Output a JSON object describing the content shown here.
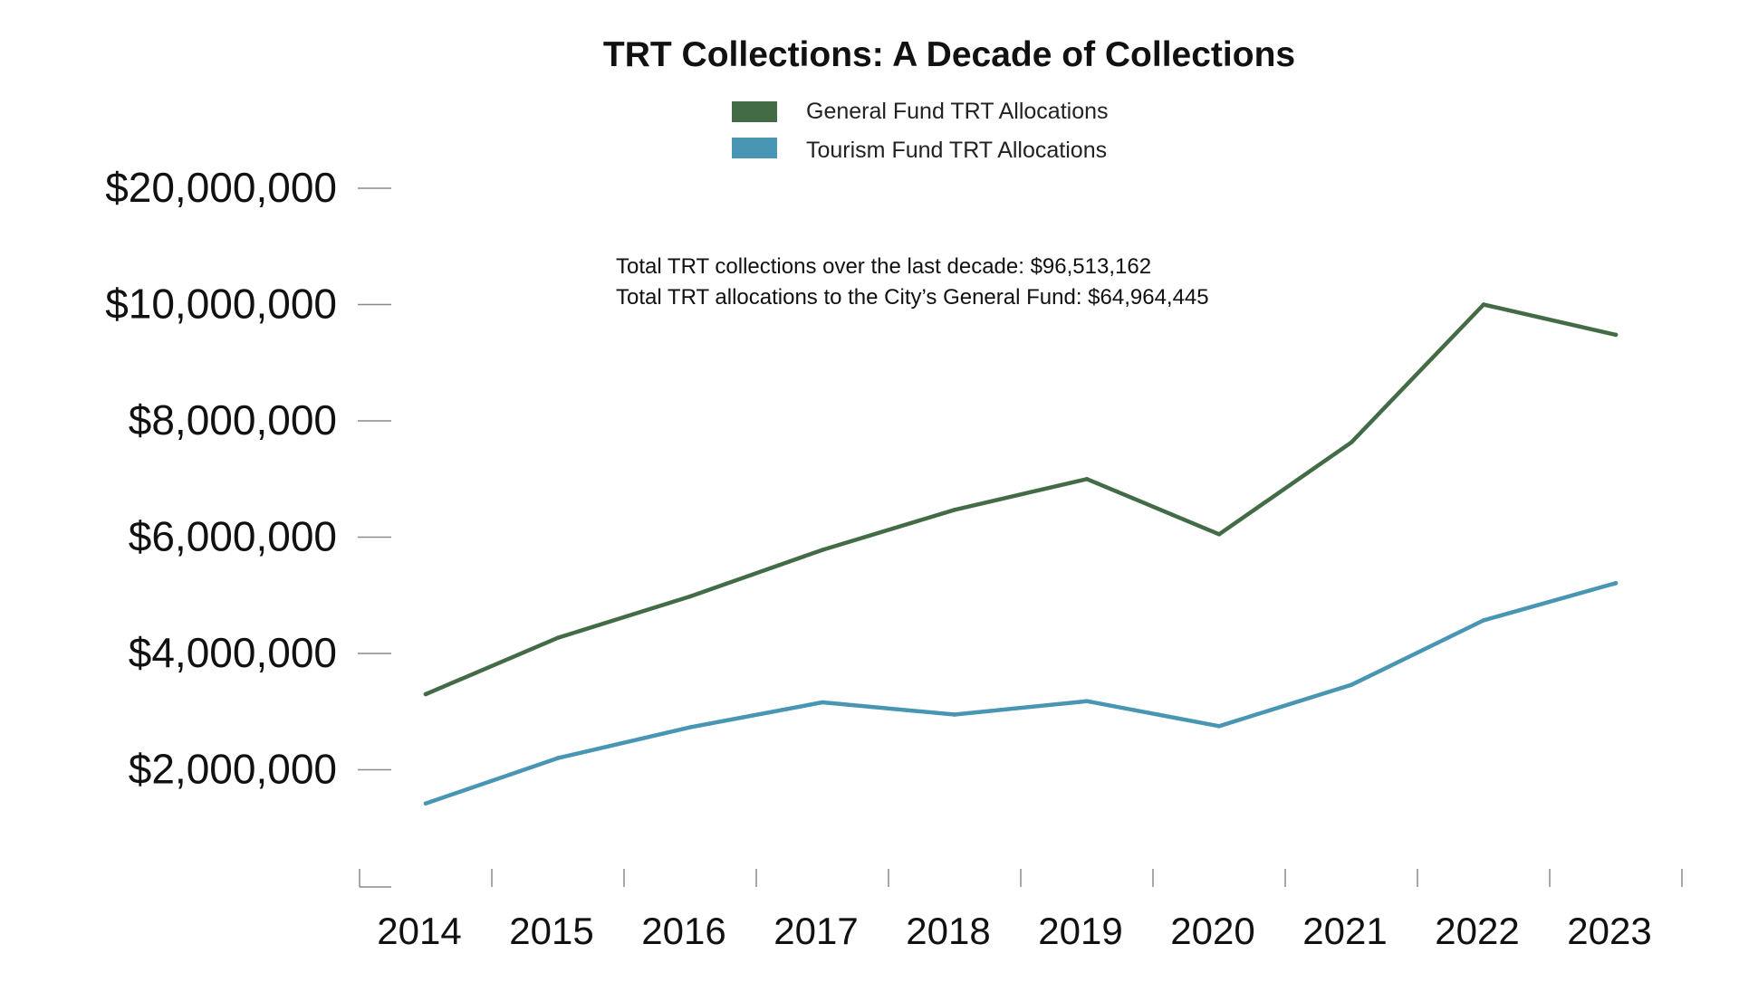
{
  "chart_data": {
    "type": "line",
    "title": "TRT Collections: A Decade of Collections",
    "categories": [
      "2014",
      "2015",
      "2016",
      "2017",
      "2018",
      "2019",
      "2020",
      "2021",
      "2022",
      "2023"
    ],
    "series": [
      {
        "name": "General Fund TRT Allocations",
        "color": "#436b45",
        "values": [
          3300000,
          4270000,
          4980000,
          5780000,
          6470000,
          7000000,
          6050000,
          7630000,
          10000000,
          9480000
        ]
      },
      {
        "name": "Tourism Fund TRT Allocations",
        "color": "#4896b3",
        "values": [
          1420000,
          2200000,
          2730000,
          3160000,
          2950000,
          3180000,
          2750000,
          3460000,
          4570000,
          5210000
        ]
      }
    ],
    "y_tick_values": [
      2000000,
      4000000,
      6000000,
      8000000,
      10000000,
      20000000
    ],
    "y_tick_labels": [
      "$2,000,000",
      "$4,000,000",
      "$6,000,000",
      "$8,000,000",
      "$10,000,000",
      "$20,000,000"
    ],
    "ylim": [
      0,
      22000000
    ],
    "y_scale": "broken: uniform up to $10,000,000, then one tick step to $20,000,000",
    "xlabel": "",
    "ylabel": "",
    "legend_position": "top-center",
    "grid": false,
    "annotations": [
      "Total TRT collections over the last decade: $96,513,162",
      "Total TRT allocations to the City’s General Fund: $64,964,445"
    ]
  }
}
